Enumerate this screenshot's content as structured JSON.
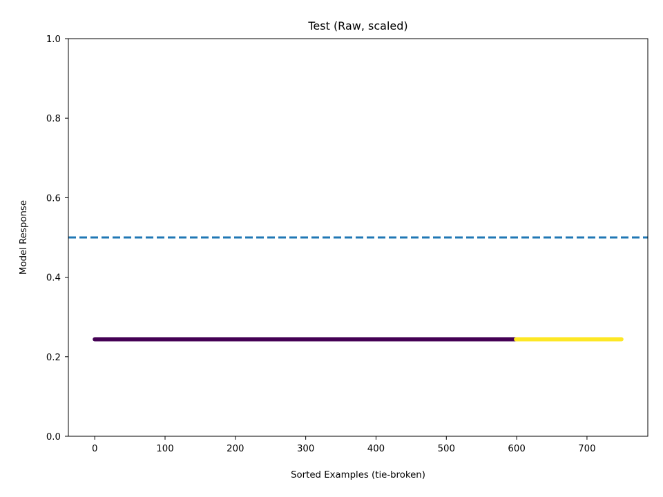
{
  "chart_data": {
    "type": "scatter",
    "title": "Test (Raw, scaled)",
    "xlabel": "Sorted Examples (tie-broken)",
    "ylabel": "Model Response",
    "xlim": [
      -37.5,
      786.5
    ],
    "ylim": [
      0.0,
      1.0
    ],
    "x_ticks": [
      0,
      100,
      200,
      300,
      400,
      500,
      600,
      700
    ],
    "y_ticks": [
      0.0,
      0.2,
      0.4,
      0.6,
      0.8,
      1.0
    ],
    "x_tick_labels": [
      "0",
      "100",
      "200",
      "300",
      "400",
      "500",
      "600",
      "700"
    ],
    "y_tick_labels": [
      "0.0",
      "0.2",
      "0.4",
      "0.6",
      "0.8",
      "1.0"
    ],
    "threshold": {
      "y": 0.5,
      "style": "dashed",
      "color": "#1f77b4"
    },
    "grid": false,
    "series": [
      {
        "x_start": 0,
        "x_end": 598,
        "y": 0.244,
        "color": "#440154"
      },
      {
        "x_start": 599,
        "x_end": 749,
        "y": 0.244,
        "color": "#fde725"
      }
    ]
  }
}
